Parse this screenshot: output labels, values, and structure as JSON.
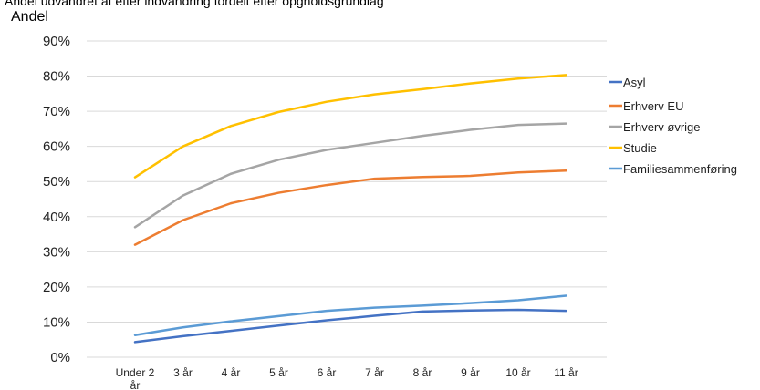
{
  "chart_data": {
    "type": "line",
    "title": "Andel udvandret af efter indvandring fordelt efter opgholdsgrundlag",
    "ylabel": "Andel",
    "xlabel": "",
    "categories": [
      "Under 2 år",
      "3 år",
      "4 år",
      "5 år",
      "6 år",
      "7 år",
      "8 år",
      "9 år",
      "10 år",
      "11 år"
    ],
    "ylim": [
      0,
      90
    ],
    "yticks": [
      "0%",
      "10%",
      "20%",
      "30%",
      "40%",
      "50%",
      "60%",
      "70%",
      "80%",
      "90%"
    ],
    "grid": true,
    "legend": "right",
    "series": [
      {
        "name": "Asyl",
        "color": "#4472C4",
        "values": [
          4.3,
          6.0,
          7.5,
          9.0,
          10.5,
          11.8,
          13.0,
          13.3,
          13.5,
          13.2
        ]
      },
      {
        "name": "Erhverv EU",
        "color": "#ED7D31",
        "values": [
          32.0,
          39.0,
          43.8,
          46.8,
          49.0,
          50.8,
          51.3,
          51.6,
          52.6,
          53.1
        ]
      },
      {
        "name": "Erhverv øvrige",
        "color": "#A5A5A5",
        "values": [
          37.0,
          46.0,
          52.2,
          56.2,
          59.0,
          61.0,
          63.0,
          64.7,
          66.1,
          66.5
        ]
      },
      {
        "name": "Studie",
        "color": "#FFC000",
        "values": [
          51.2,
          60.0,
          65.8,
          69.8,
          72.7,
          74.8,
          76.3,
          77.9,
          79.3,
          80.3
        ]
      },
      {
        "name": "Familiesammenføring",
        "color": "#5B9BD5",
        "values": [
          6.3,
          8.5,
          10.2,
          11.7,
          13.2,
          14.1,
          14.7,
          15.4,
          16.2,
          17.5
        ]
      }
    ]
  }
}
